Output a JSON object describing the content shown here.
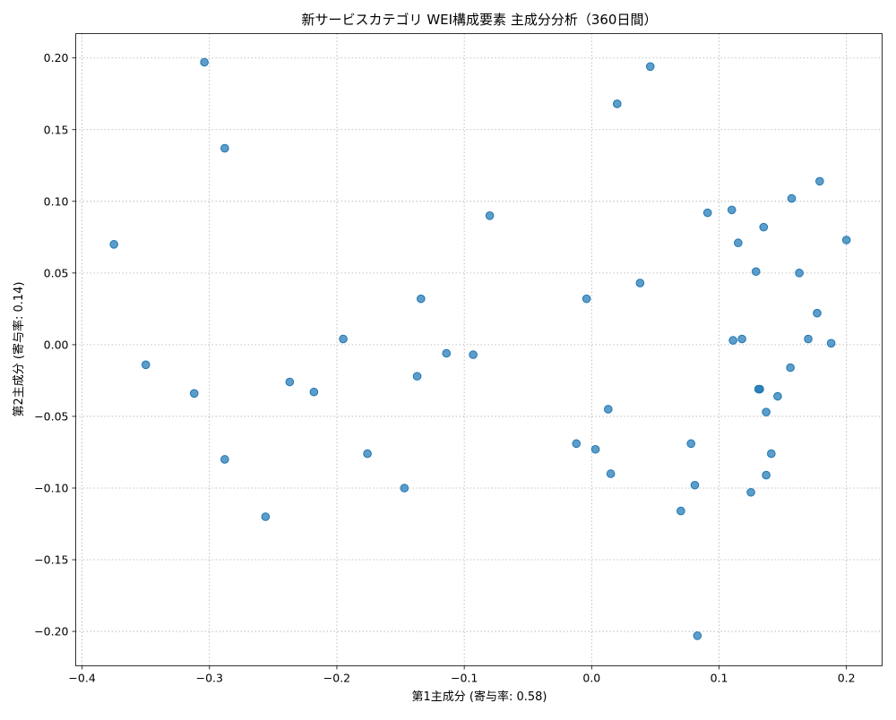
{
  "chart_data": {
    "type": "scatter",
    "title": "新サービスカテゴリ WEI構成要素 主成分分析（360日間）",
    "xlabel": "第1主成分 (寄与率: 0.58)",
    "ylabel": "第2主成分 (寄与率: 0.14)",
    "xlim": [
      -0.405,
      0.228
    ],
    "ylim": [
      -0.224,
      0.217
    ],
    "xticks": [
      -0.4,
      -0.3,
      -0.2,
      -0.1,
      0.0,
      0.1,
      0.2
    ],
    "xtick_labels": [
      "−0.4",
      "−0.3",
      "−0.2",
      "−0.1",
      "0.0",
      "0.1",
      "0.2"
    ],
    "yticks": [
      -0.2,
      -0.15,
      -0.1,
      -0.05,
      0.0,
      0.05,
      0.1,
      0.15,
      0.2
    ],
    "ytick_labels": [
      "−0.20",
      "−0.15",
      "−0.10",
      "−0.05",
      "0.00",
      "0.05",
      "0.10",
      "0.15",
      "0.20"
    ],
    "grid": true,
    "point_color": "#1f77b4",
    "points": [
      {
        "x": -0.375,
        "y": 0.07
      },
      {
        "x": -0.35,
        "y": -0.014
      },
      {
        "x": -0.312,
        "y": -0.034
      },
      {
        "x": -0.304,
        "y": 0.197
      },
      {
        "x": -0.288,
        "y": 0.137
      },
      {
        "x": -0.288,
        "y": -0.08
      },
      {
        "x": -0.256,
        "y": -0.12
      },
      {
        "x": -0.237,
        "y": -0.026
      },
      {
        "x": -0.218,
        "y": -0.033
      },
      {
        "x": -0.195,
        "y": 0.004
      },
      {
        "x": -0.176,
        "y": -0.076
      },
      {
        "x": -0.147,
        "y": -0.1
      },
      {
        "x": -0.137,
        "y": -0.022
      },
      {
        "x": -0.134,
        "y": 0.032
      },
      {
        "x": -0.114,
        "y": -0.006
      },
      {
        "x": -0.093,
        "y": -0.007
      },
      {
        "x": -0.08,
        "y": 0.09
      },
      {
        "x": -0.004,
        "y": 0.032
      },
      {
        "x": -0.012,
        "y": -0.069
      },
      {
        "x": 0.003,
        "y": -0.073
      },
      {
        "x": 0.013,
        "y": -0.045
      },
      {
        "x": 0.015,
        "y": -0.09
      },
      {
        "x": 0.02,
        "y": 0.168
      },
      {
        "x": 0.038,
        "y": 0.043
      },
      {
        "x": 0.046,
        "y": 0.194
      },
      {
        "x": 0.07,
        "y": -0.116
      },
      {
        "x": 0.078,
        "y": -0.069
      },
      {
        "x": 0.081,
        "y": -0.098
      },
      {
        "x": 0.083,
        "y": -0.203
      },
      {
        "x": 0.091,
        "y": 0.092
      },
      {
        "x": 0.11,
        "y": 0.094
      },
      {
        "x": 0.111,
        "y": 0.003
      },
      {
        "x": 0.115,
        "y": 0.071
      },
      {
        "x": 0.118,
        "y": 0.004
      },
      {
        "x": 0.125,
        "y": -0.103
      },
      {
        "x": 0.129,
        "y": 0.051
      },
      {
        "x": 0.131,
        "y": -0.031
      },
      {
        "x": 0.132,
        "y": -0.031
      },
      {
        "x": 0.135,
        "y": 0.082
      },
      {
        "x": 0.137,
        "y": -0.047
      },
      {
        "x": 0.137,
        "y": -0.091
      },
      {
        "x": 0.141,
        "y": -0.076
      },
      {
        "x": 0.146,
        "y": -0.036
      },
      {
        "x": 0.156,
        "y": -0.016
      },
      {
        "x": 0.157,
        "y": 0.102
      },
      {
        "x": 0.163,
        "y": 0.05
      },
      {
        "x": 0.17,
        "y": 0.004
      },
      {
        "x": 0.177,
        "y": 0.022
      },
      {
        "x": 0.179,
        "y": 0.114
      },
      {
        "x": 0.188,
        "y": 0.001
      },
      {
        "x": 0.2,
        "y": 0.073
      }
    ]
  }
}
